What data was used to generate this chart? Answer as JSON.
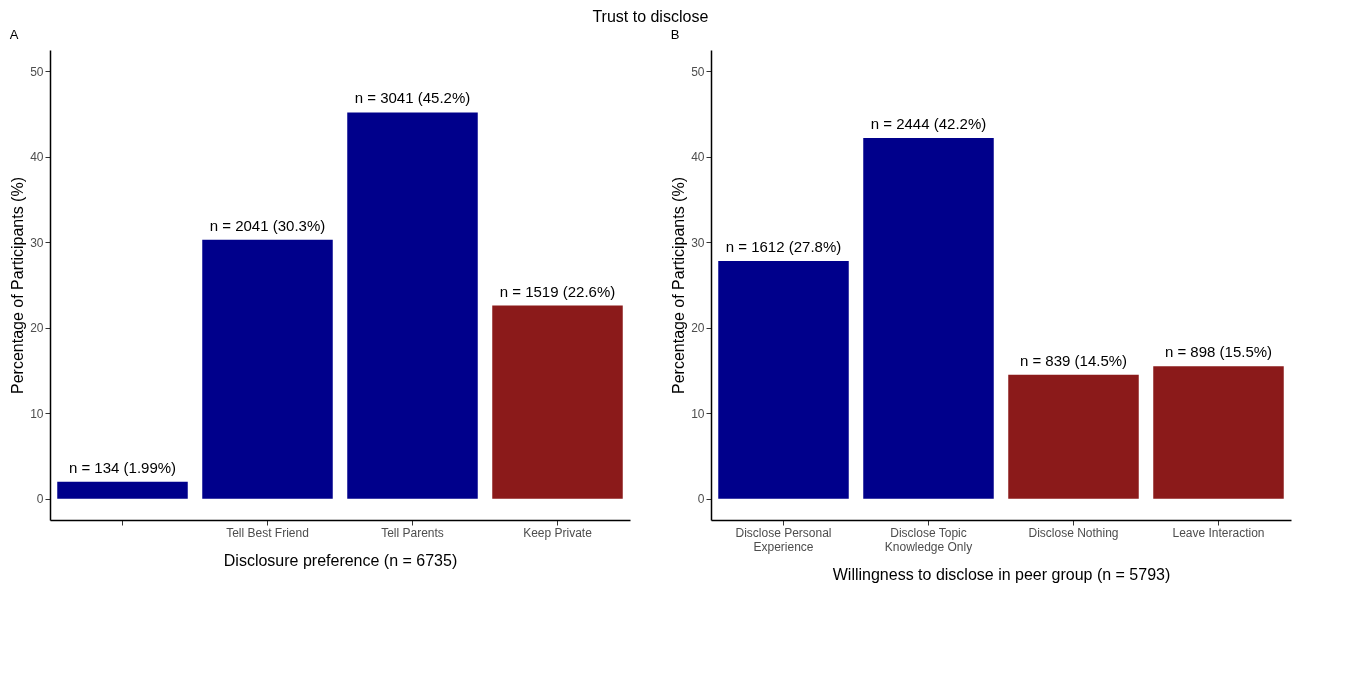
{
  "chart_data": [
    {
      "type": "bar",
      "title": "Trust to disclose",
      "subtitle": "A",
      "xlabel": "Disclosure preference (n = 6735)",
      "ylabel": "Percentage of Participants (%)",
      "categories": [
        null,
        "Tell Best Friend",
        "Tell Parents",
        "Keep Private"
      ],
      "values": [
        1.99,
        30.3,
        45.2,
        22.6
      ],
      "colors": [
        "#00008b",
        "#00008b",
        "#00008b",
        "#8b1a1a"
      ],
      "value_labels": [
        "n = 134 (1.99%)",
        "n = 2041 (30.3%)",
        "n = 3041 (45.2%)",
        "n = 1519 (22.6%)"
      ],
      "ylim": [
        -2.5,
        52.5
      ],
      "yticks": [
        0,
        10,
        20,
        30,
        40,
        50
      ],
      "grid": false,
      "legend": false
    },
    {
      "type": "bar",
      "subtitle": "B",
      "xlabel": "Willingness to disclose in peer group (n = 5793)",
      "ylabel": "Percentage of Participants (%)",
      "categories": [
        "Disclose Personal\nExperience",
        "Disclose Topic\nKnowledge Only",
        "Disclose Nothing",
        "Leave Interaction"
      ],
      "values": [
        27.8,
        42.2,
        14.5,
        15.5
      ],
      "colors": [
        "#00008b",
        "#00008b",
        "#8b1a1a",
        "#8b1a1a"
      ],
      "value_labels": [
        "n = 1612 (27.8%)",
        "n = 2444 (42.2%)",
        "n = 839 (14.5%)",
        "n = 898 (15.5%)"
      ],
      "ylim": [
        -2.5,
        52.5
      ],
      "yticks": [
        0,
        10,
        20,
        30,
        40,
        50
      ],
      "grid": false,
      "legend": false
    }
  ]
}
